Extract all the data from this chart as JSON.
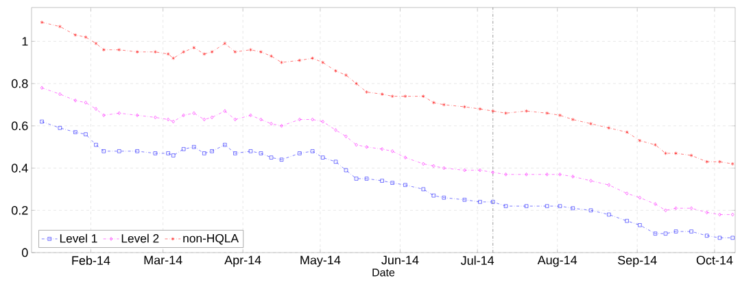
{
  "chart_data": {
    "type": "line",
    "xlabel": "Date",
    "x": [
      "2014-01-13",
      "2014-01-20",
      "2014-01-26",
      "2014-01-30",
      "2014-02-03",
      "2014-02-06",
      "2014-02-12",
      "2014-02-19",
      "2014-02-26",
      "2014-03-03",
      "2014-03-05",
      "2014-03-09",
      "2014-03-13",
      "2014-03-17",
      "2014-03-20",
      "2014-03-25",
      "2014-03-29",
      "2014-04-04",
      "2014-04-08",
      "2014-04-12",
      "2014-04-16",
      "2014-04-23",
      "2014-04-28",
      "2014-05-02",
      "2014-05-07",
      "2014-05-11",
      "2014-05-15",
      "2014-05-19",
      "2014-05-25",
      "2014-05-29",
      "2014-06-03",
      "2014-06-10",
      "2014-06-14",
      "2014-06-18",
      "2014-06-26",
      "2014-07-02",
      "2014-07-07",
      "2014-07-12",
      "2014-07-20",
      "2014-07-28",
      "2014-08-02",
      "2014-08-07",
      "2014-08-14",
      "2014-08-21",
      "2014-08-28",
      "2014-09-02",
      "2014-09-08",
      "2014-09-12",
      "2014-09-16",
      "2014-09-22",
      "2014-09-28",
      "2014-10-03",
      "2014-10-08"
    ],
    "series": [
      {
        "name": "Level 1",
        "color": "#0000ff",
        "marker": "square",
        "values": [
          0.62,
          0.59,
          0.57,
          0.56,
          0.51,
          0.48,
          0.48,
          0.48,
          0.47,
          0.47,
          0.46,
          0.49,
          0.5,
          0.47,
          0.48,
          0.51,
          0.47,
          0.48,
          0.47,
          0.45,
          0.44,
          0.47,
          0.48,
          0.45,
          0.43,
          0.39,
          0.35,
          0.35,
          0.34,
          0.33,
          0.32,
          0.3,
          0.27,
          0.26,
          0.25,
          0.24,
          0.24,
          0.22,
          0.22,
          0.22,
          0.22,
          0.21,
          0.2,
          0.18,
          0.15,
          0.13,
          0.09,
          0.09,
          0.1,
          0.1,
          0.08,
          0.07,
          0.07
        ]
      },
      {
        "name": "Level 2",
        "color": "#ff00ff",
        "marker": "diamond",
        "values": [
          0.78,
          0.75,
          0.72,
          0.71,
          0.68,
          0.65,
          0.66,
          0.65,
          0.64,
          0.63,
          0.62,
          0.65,
          0.66,
          0.63,
          0.64,
          0.67,
          0.63,
          0.65,
          0.63,
          0.61,
          0.6,
          0.63,
          0.63,
          0.62,
          0.58,
          0.55,
          0.51,
          0.5,
          0.49,
          0.48,
          0.45,
          0.42,
          0.41,
          0.4,
          0.39,
          0.39,
          0.38,
          0.37,
          0.37,
          0.37,
          0.37,
          0.36,
          0.34,
          0.32,
          0.28,
          0.26,
          0.23,
          0.2,
          0.21,
          0.21,
          0.19,
          0.18,
          0.18
        ]
      },
      {
        "name": "non-HQLA",
        "color": "#ff0000",
        "marker": "cross",
        "values": [
          1.09,
          1.07,
          1.03,
          1.02,
          0.99,
          0.96,
          0.96,
          0.95,
          0.95,
          0.94,
          0.92,
          0.95,
          0.97,
          0.94,
          0.95,
          0.99,
          0.95,
          0.96,
          0.95,
          0.93,
          0.9,
          0.91,
          0.92,
          0.9,
          0.86,
          0.84,
          0.8,
          0.76,
          0.75,
          0.74,
          0.74,
          0.74,
          0.71,
          0.7,
          0.69,
          0.68,
          0.67,
          0.66,
          0.67,
          0.66,
          0.65,
          0.63,
          0.61,
          0.59,
          0.57,
          0.53,
          0.51,
          0.47,
          0.47,
          0.46,
          0.43,
          0.43,
          0.42
        ]
      }
    ],
    "xlim": [
      "2014-01-09",
      "2014-10-09"
    ],
    "xticks": [
      {
        "value": "2014-02-01",
        "label": "Feb-14"
      },
      {
        "value": "2014-03-01",
        "label": "Mar-14"
      },
      {
        "value": "2014-04-01",
        "label": "Apr-14"
      },
      {
        "value": "2014-05-01",
        "label": "May-14"
      },
      {
        "value": "2014-06-01",
        "label": "Jun-14"
      },
      {
        "value": "2014-07-01",
        "label": "Jul-14"
      },
      {
        "value": "2014-08-01",
        "label": "Aug-14"
      },
      {
        "value": "2014-09-01",
        "label": "Sep-14"
      },
      {
        "value": "2014-10-01",
        "label": "Oct-14"
      }
    ],
    "ylim": [
      0,
      1.16
    ],
    "yticks": [
      0,
      0.2,
      0.4,
      0.6,
      0.8,
      1
    ],
    "ref_lines": [
      {
        "axis": "x",
        "value": "2014-07-07",
        "color": "#808080",
        "line_style": "dashed"
      }
    ],
    "grid": true,
    "legend": "bottom left",
    "line_style": "dashed"
  }
}
